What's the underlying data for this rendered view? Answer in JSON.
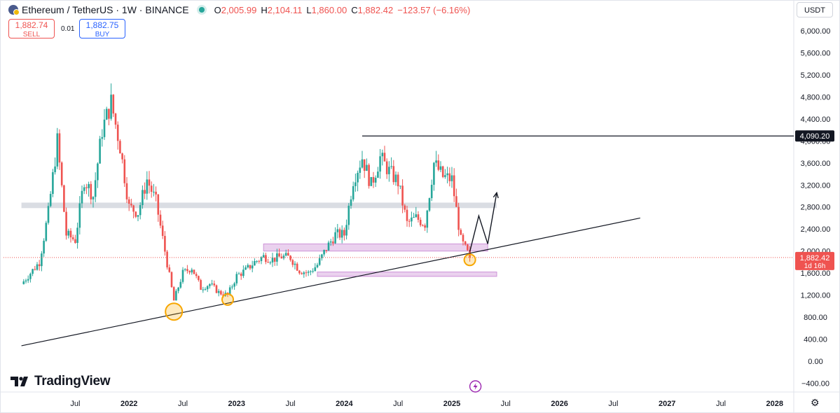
{
  "header": {
    "title": "Ethereum / TetherUS · 1W · BINANCE",
    "open_label": "O",
    "open": "2,005.99",
    "high_label": "H",
    "high": "2,104.11",
    "low_label": "L",
    "low": "1,860.00",
    "close_label": "C",
    "close": "1,882.42",
    "change": "−123.57 (−6.16%)"
  },
  "trade": {
    "sell_price": "1,882.74",
    "sell_label": "SELL",
    "spread": "0.01",
    "buy_price": "1,882.75",
    "buy_label": "BUY"
  },
  "currency_button": "USDT",
  "logo_text": "TradingView",
  "icons": {
    "symbol": "ethereum-binance-icon",
    "status": "market-open-dot",
    "settings": "gear-icon",
    "flash": "lightning-icon",
    "logo": "tradingview-logo-icon"
  },
  "colors": {
    "up": "#26a69a",
    "down": "#ef5350",
    "zone": "#e1bee7",
    "zone_border": "#ce93d8",
    "grey_zone": "#d1d4dc",
    "highlight": "#f7a600",
    "text": "#131722"
  },
  "chart_data": {
    "type": "candlestick",
    "x_start": "2021-01",
    "x_end": "2028-12",
    "ylim": [
      -400,
      6000
    ],
    "y_ticks": [
      "6,000.00",
      "5,600.00",
      "5,200.00",
      "4,800.00",
      "4,400.00",
      "4,000.00",
      "3,600.00",
      "3,200.00",
      "2,800.00",
      "2,400.00",
      "2,000.00",
      "1,600.00",
      "1,200.00",
      "800.00",
      "400.00",
      "0.00",
      "−400.00"
    ],
    "y_tick_values": [
      6000,
      5600,
      5200,
      4800,
      4400,
      4000,
      3600,
      3200,
      2800,
      2400,
      2000,
      1600,
      1200,
      800,
      400,
      0,
      -400
    ],
    "x_ticks": [
      "Jul",
      "2022",
      "Jul",
      "2023",
      "Jul",
      "2024",
      "Jul",
      "2025",
      "Jul",
      "2026",
      "Jul",
      "2027",
      "Jul",
      "2028"
    ],
    "x_tick_dates": [
      "2021-07",
      "2022-01",
      "2022-07",
      "2023-01",
      "2023-07",
      "2024-01",
      "2024-07",
      "2025-01",
      "2025-07",
      "2026-01",
      "2026-07",
      "2027-01",
      "2027-07",
      "2028-01"
    ],
    "price_path": [
      {
        "date": "2021-01",
        "price": 1400
      },
      {
        "date": "2021-02",
        "price": 1600
      },
      {
        "date": "2021-03",
        "price": 1800
      },
      {
        "date": "2021-04",
        "price": 2700
      },
      {
        "date": "2021-05",
        "price": 4000
      },
      {
        "date": "2021-06",
        "price": 2300
      },
      {
        "date": "2021-07",
        "price": 2200
      },
      {
        "date": "2021-08",
        "price": 3300
      },
      {
        "date": "2021-09",
        "price": 3000
      },
      {
        "date": "2021-10",
        "price": 4200
      },
      {
        "date": "2021-11",
        "price": 4700
      },
      {
        "date": "2021-12",
        "price": 3900
      },
      {
        "date": "2022-01",
        "price": 2800
      },
      {
        "date": "2022-02",
        "price": 2700
      },
      {
        "date": "2022-03",
        "price": 3300
      },
      {
        "date": "2022-04",
        "price": 2900
      },
      {
        "date": "2022-05",
        "price": 2000
      },
      {
        "date": "2022-06",
        "price": 1100
      },
      {
        "date": "2022-07",
        "price": 1600
      },
      {
        "date": "2022-08",
        "price": 1700
      },
      {
        "date": "2022-09",
        "price": 1330
      },
      {
        "date": "2022-10",
        "price": 1400
      },
      {
        "date": "2022-11",
        "price": 1250
      },
      {
        "date": "2022-12",
        "price": 1200
      },
      {
        "date": "2023-01",
        "price": 1550
      },
      {
        "date": "2023-02",
        "price": 1650
      },
      {
        "date": "2023-03",
        "price": 1800
      },
      {
        "date": "2023-04",
        "price": 1900
      },
      {
        "date": "2023-05",
        "price": 1850
      },
      {
        "date": "2023-06",
        "price": 1900
      },
      {
        "date": "2023-07",
        "price": 1880
      },
      {
        "date": "2023-08",
        "price": 1650
      },
      {
        "date": "2023-09",
        "price": 1600
      },
      {
        "date": "2023-10",
        "price": 1750
      },
      {
        "date": "2023-11",
        "price": 2050
      },
      {
        "date": "2023-12",
        "price": 2300
      },
      {
        "date": "2024-01",
        "price": 2300
      },
      {
        "date": "2024-02",
        "price": 3300
      },
      {
        "date": "2024-03",
        "price": 3700
      },
      {
        "date": "2024-04",
        "price": 3200
      },
      {
        "date": "2024-05",
        "price": 3700
      },
      {
        "date": "2024-06",
        "price": 3450
      },
      {
        "date": "2024-07",
        "price": 3250
      },
      {
        "date": "2024-08",
        "price": 2500
      },
      {
        "date": "2024-09",
        "price": 2600
      },
      {
        "date": "2024-10",
        "price": 2500
      },
      {
        "date": "2024-11",
        "price": 3600
      },
      {
        "date": "2024-12",
        "price": 3350
      },
      {
        "date": "2025-01",
        "price": 3300
      },
      {
        "date": "2025-02",
        "price": 2200
      },
      {
        "date": "2025-03",
        "price": 1882.42
      }
    ],
    "resistance_level": {
      "value": "4,090.20",
      "from": "2024-03"
    },
    "trendline": {
      "from": {
        "date": "2021-01",
        "price": 280
      },
      "to": {
        "date": "2026-10",
        "price": 2600
      }
    },
    "grey_zone": {
      "from": "2021-01",
      "to": "2025-06",
      "low": 2780,
      "high": 2880
    },
    "purple_zones": [
      {
        "from": "2023-04",
        "to": "2025-05",
        "low": 2000,
        "high": 2130
      },
      {
        "from": "2023-10",
        "to": "2025-06",
        "low": 1540,
        "high": 1620
      }
    ],
    "highlight_circles": [
      {
        "date": "2022-06",
        "price": 900
      },
      {
        "date": "2022-12",
        "price": 1120
      },
      {
        "date": "2025-03",
        "price": 1840
      }
    ],
    "projection_path": [
      {
        "date": "2025-03",
        "price": 1990
      },
      {
        "date": "2025-04",
        "price": 2640
      },
      {
        "date": "2025-05",
        "price": 2130
      },
      {
        "date": "2025-06",
        "price": 3060
      }
    ],
    "last_price": {
      "value": "1,882.42",
      "countdown": "1d 16h"
    }
  }
}
